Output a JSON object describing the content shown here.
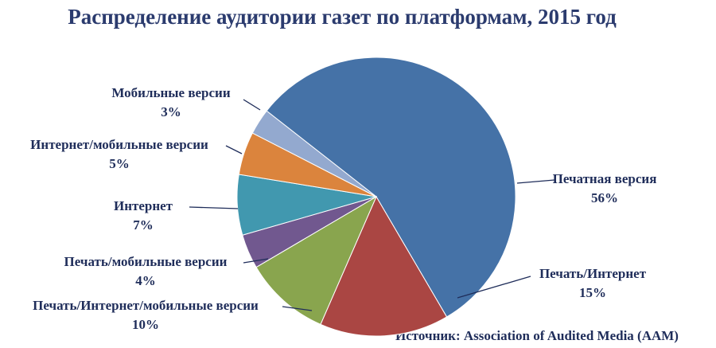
{
  "chart_data": {
    "type": "pie",
    "title": "Распределение аудитории газет по платформам, 2015 год",
    "categories": [
      "Печатная версия",
      "Печать/Интернет",
      "Печать/Интернет/мобильные версии",
      "Печать/мобильные версии",
      "Интернет",
      "Интернет/мобильные версии",
      "Мобильные версии"
    ],
    "values": [
      56,
      15,
      10,
      4,
      7,
      5,
      3
    ],
    "value_labels": [
      "56%",
      "15%",
      "10%",
      "4%",
      "7%",
      "5%",
      "3%"
    ],
    "colors": [
      "#4572a7",
      "#aa4643",
      "#89a54e",
      "#71588f",
      "#4198af",
      "#db843d",
      "#93a9cf"
    ],
    "source": "Источник: Association of Audited Media (AAM)"
  }
}
